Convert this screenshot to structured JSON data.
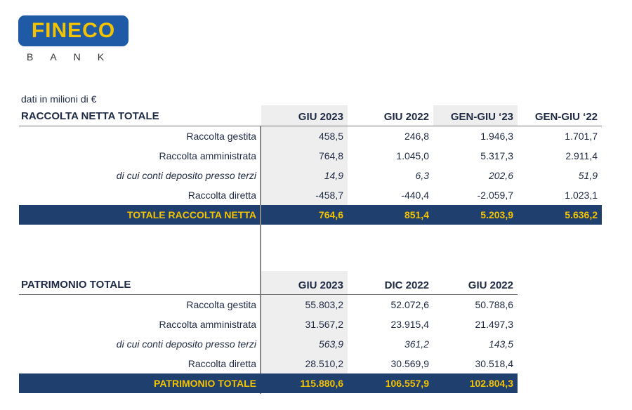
{
  "logo": {
    "brand": "FINECO",
    "sub": "BANK"
  },
  "units": "dati in milioni di €",
  "table1": {
    "title": "RACCOLTA NETTA TOTALE",
    "columns": [
      "GIU 2023",
      "GIU 2022",
      "GEN-GIU ‘23",
      "GEN-GIU ‘22"
    ],
    "rows": [
      {
        "label": "Raccolta gestita",
        "values": [
          "458,5",
          "246,8",
          "1.946,3",
          "1.701,7"
        ],
        "italic": false
      },
      {
        "label": "Raccolta amministrata",
        "values": [
          "764,8",
          "1.045,0",
          "5.317,3",
          "2.911,4"
        ],
        "italic": false
      },
      {
        "label": "di cui conti deposito presso terzi",
        "values": [
          "14,9",
          "6,3",
          "202,6",
          "51,9"
        ],
        "italic": true
      },
      {
        "label": "Raccolta diretta",
        "values": [
          "-458,7",
          "-440,4",
          "-2.059,7",
          "1.023,1"
        ],
        "italic": false
      }
    ],
    "total": {
      "label": "TOTALE RACCOLTA NETTA",
      "values": [
        "764,6",
        "851,4",
        "5.203,9",
        "5.636,2"
      ]
    }
  },
  "table2": {
    "title": "PATRIMONIO TOTALE",
    "columns": [
      "GIU 2023",
      "DIC 2022",
      "GIU 2022"
    ],
    "rows": [
      {
        "label": "Raccolta gestita",
        "values": [
          "55.803,2",
          "52.072,6",
          "50.788,6"
        ],
        "italic": false
      },
      {
        "label": "Raccolta amministrata",
        "values": [
          "31.567,2",
          "23.915,4",
          "21.497,3"
        ],
        "italic": false
      },
      {
        "label": "di cui conti deposito presso terzi",
        "values": [
          "563,9",
          "361,2",
          "143,5"
        ],
        "italic": true
      },
      {
        "label": "Raccolta diretta",
        "values": [
          "28.510,2",
          "30.569,9",
          "30.518,4"
        ],
        "italic": false
      }
    ],
    "total": {
      "label": "PATRIMONIO TOTALE",
      "values": [
        "115.880,6",
        "106.557,9",
        "102.804,3"
      ]
    }
  },
  "colors": {
    "total_bg": "#1f3f6e",
    "total_text": "#f3c300",
    "shade": "#eeeeee",
    "logo_bg": "#1f5aa6"
  }
}
